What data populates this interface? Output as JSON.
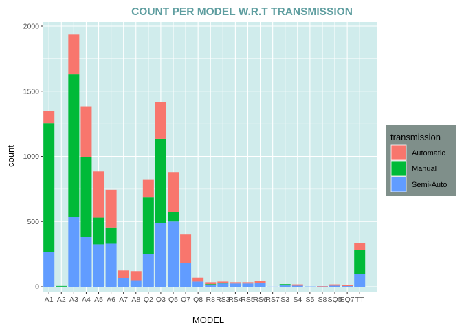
{
  "chart_data": {
    "type": "bar",
    "stacked": true,
    "title": "COUNT PER  MODEL W.R.T TRANSMISSION",
    "xlabel": "MODEL",
    "ylabel": "count",
    "ylim": [
      0,
      2000
    ],
    "yticks": [
      0,
      500,
      1000,
      1500,
      2000
    ],
    "grid": true,
    "legend_title": "transmission",
    "legend_position": "right",
    "categories": [
      "A1",
      "A2",
      "A3",
      "A4",
      "A5",
      "A6",
      "A7",
      "A8",
      "Q2",
      "Q3",
      "Q5",
      "Q7",
      "Q8",
      "R8",
      "RS3",
      "RS4",
      "RS5",
      "RS6",
      "RS7",
      "S3",
      "S4",
      "S5",
      "S8",
      "SQ5",
      "SQ7",
      "TT"
    ],
    "series": [
      {
        "name": "Semi-Auto",
        "color": "#619cff",
        "values": [
          265,
          1,
          535,
          380,
          325,
          330,
          65,
          50,
          250,
          490,
          500,
          180,
          40,
          15,
          25,
          25,
          25,
          30,
          1,
          10,
          8,
          2,
          2,
          8,
          5,
          100
        ]
      },
      {
        "name": "Manual",
        "color": "#00ba38",
        "values": [
          990,
          5,
          1095,
          615,
          205,
          125,
          0,
          0,
          435,
          645,
          75,
          0,
          0,
          5,
          5,
          0,
          0,
          0,
          0,
          10,
          0,
          0,
          0,
          0,
          0,
          180
        ]
      },
      {
        "name": "Automatic",
        "color": "#f8766d",
        "values": [
          95,
          0,
          305,
          390,
          355,
          290,
          60,
          70,
          135,
          280,
          305,
          220,
          30,
          15,
          10,
          10,
          10,
          15,
          0,
          0,
          10,
          0,
          3,
          10,
          7,
          55
        ]
      }
    ]
  }
}
